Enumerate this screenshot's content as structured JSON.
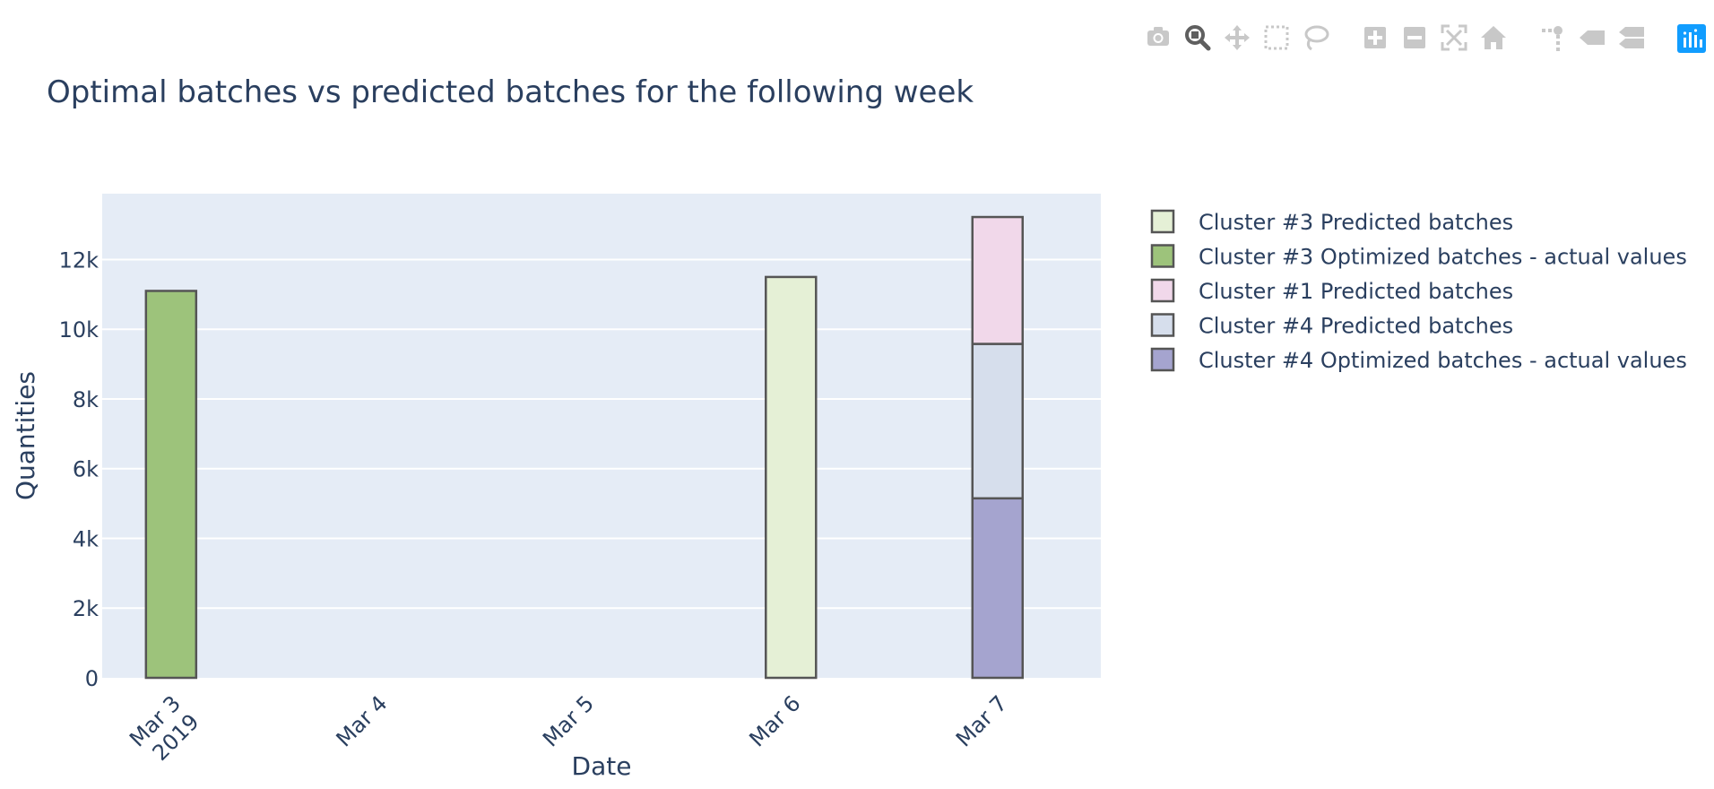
{
  "modebar": {
    "buttons": [
      {
        "name": "camera-icon",
        "group": 1
      },
      {
        "name": "zoom-icon",
        "group": 1,
        "active": true
      },
      {
        "name": "pan-icon",
        "group": 1
      },
      {
        "name": "box-select-icon",
        "group": 1
      },
      {
        "name": "lasso-select-icon",
        "group": 1
      },
      {
        "name": "zoom-in-icon",
        "group": 2
      },
      {
        "name": "zoom-out-icon",
        "group": 2
      },
      {
        "name": "autoscale-icon",
        "group": 2
      },
      {
        "name": "reset-axes-icon",
        "group": 2
      },
      {
        "name": "spike-lines-icon",
        "group": 3
      },
      {
        "name": "hover-closest-icon",
        "group": 3
      },
      {
        "name": "hover-compare-icon",
        "group": 3
      },
      {
        "name": "plotly-logo-icon",
        "group": 4
      }
    ],
    "colors": {
      "idle": "#c8c8c8",
      "active": "#5f5f5f",
      "logo": "#119dff"
    }
  },
  "chart_data": {
    "type": "bar",
    "barmode": "stack",
    "title": "Optimal batches vs predicted batches for the following week",
    "xlabel": "Date",
    "ylabel": "Quantities",
    "x_ticks": [
      {
        "date": "2019-03-03",
        "label": "Mar 3",
        "label2": "2019"
      },
      {
        "date": "2019-03-04",
        "label": "Mar 4"
      },
      {
        "date": "2019-03-05",
        "label": "Mar 5"
      },
      {
        "date": "2019-03-06",
        "label": "Mar 6"
      },
      {
        "date": "2019-03-07",
        "label": "Mar 7"
      }
    ],
    "xlim": [
      "2019-03-02T16:00:00",
      "2019-03-07T12:00:00"
    ],
    "ylim": [
      0,
      13890
    ],
    "y_ticks": [
      {
        "value": 0,
        "label": "0"
      },
      {
        "value": 2000,
        "label": "2k"
      },
      {
        "value": 4000,
        "label": "4k"
      },
      {
        "value": 6000,
        "label": "6k"
      },
      {
        "value": 8000,
        "label": "8k"
      },
      {
        "value": 10000,
        "label": "10k"
      },
      {
        "value": 12000,
        "label": "12k"
      }
    ],
    "grid": true,
    "legend_position": "right",
    "plot_bgcolor": "#e5ecf6",
    "series": [
      {
        "name": "Cluster #3 Predicted batches",
        "color": "#e5f0d6",
        "points": [
          {
            "x": "2019-03-06",
            "y": 11500
          }
        ]
      },
      {
        "name": "Cluster #3 Optimized batches - actual values",
        "color": "#9dc37b",
        "points": [
          {
            "x": "2019-03-03",
            "y": 11100
          }
        ]
      },
      {
        "name": "Cluster #1 Predicted batches",
        "color": "#f1d8ea",
        "points": [
          {
            "x": "2019-03-07",
            "y": 3640
          }
        ]
      },
      {
        "name": "Cluster #4 Predicted batches",
        "color": "#d6deec",
        "points": [
          {
            "x": "2019-03-07",
            "y": 4430
          }
        ]
      },
      {
        "name": "Cluster #4 Optimized batches - actual values",
        "color": "#a5a4cf",
        "points": [
          {
            "x": "2019-03-07",
            "y": 5150
          }
        ]
      }
    ]
  }
}
